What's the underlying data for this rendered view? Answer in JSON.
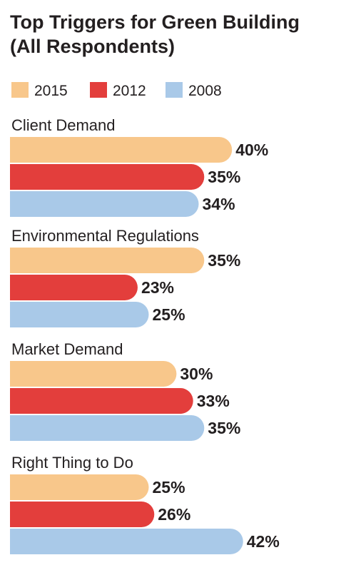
{
  "chart_data": {
    "type": "bar",
    "orientation": "horizontal",
    "title": "Top Triggers for Green Building (All Respondents)",
    "title_lines": [
      "Top Triggers for Green Building",
      "(All Respondents)"
    ],
    "value_suffix": "%",
    "categories": [
      "Client Demand",
      "Environmental Regulations",
      "Market Demand",
      "Right Thing to Do"
    ],
    "series": [
      {
        "name": "2015",
        "color": "#f8c78b",
        "values": [
          40,
          35,
          30,
          25
        ]
      },
      {
        "name": "2012",
        "color": "#e33e3c",
        "values": [
          35,
          23,
          33,
          26
        ]
      },
      {
        "name": "2008",
        "color": "#a9c9e8",
        "values": [
          34,
          25,
          35,
          42
        ]
      }
    ],
    "xlim": [
      0,
      42
    ],
    "legend": "top-left",
    "grid": false
  }
}
